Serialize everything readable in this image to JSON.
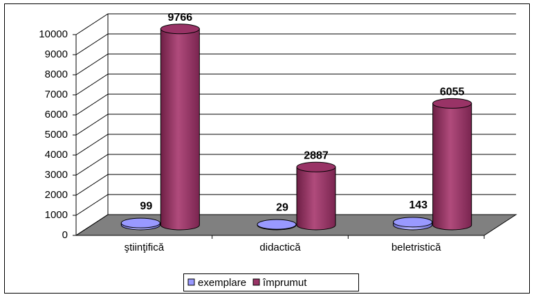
{
  "chart_data": {
    "type": "bar3d",
    "categories": [
      "ştiinţifică",
      "didactică",
      "beletristică"
    ],
    "series": [
      {
        "name": "exemplare",
        "color": "#9999ff",
        "values": [
          99,
          29,
          143
        ]
      },
      {
        "name": "împrumut",
        "color": "#993366",
        "values": [
          9766,
          2887,
          6055
        ]
      }
    ],
    "ylim": [
      0,
      10000
    ],
    "yticks": [
      0,
      1000,
      2000,
      3000,
      4000,
      5000,
      6000,
      7000,
      8000,
      9000,
      10000
    ],
    "grid": true,
    "legend": "bottom"
  }
}
